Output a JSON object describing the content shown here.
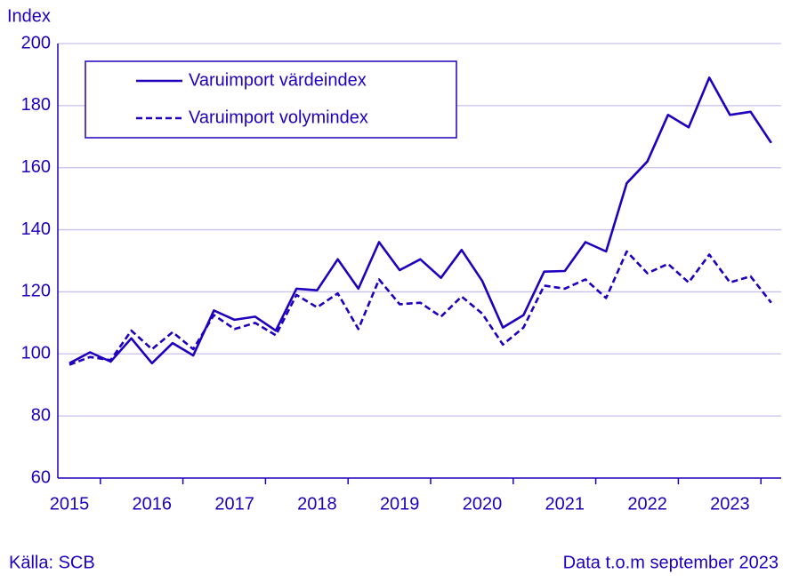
{
  "chart_data": {
    "type": "line",
    "y_label": "Index",
    "categories": [
      "2015",
      null,
      null,
      null,
      "2016",
      null,
      null,
      null,
      "2017",
      null,
      null,
      null,
      "2018",
      null,
      null,
      null,
      "2019",
      null,
      null,
      null,
      "2020",
      null,
      null,
      null,
      "2021",
      null,
      null,
      null,
      "2022",
      null,
      null,
      null,
      "2023",
      null,
      null
    ],
    "series": [
      {
        "name": "Varuimport värdeindex",
        "color": "#1e00be",
        "dash": "solid",
        "values": [
          97,
          100.5,
          97.5,
          105,
          97,
          103.5,
          99.5,
          114,
          111,
          112,
          107.5,
          121,
          120.5,
          130.5,
          121,
          136,
          127,
          130.5,
          124.5,
          133.5,
          123.5,
          108.5,
          112.5,
          126.5,
          126.7,
          136,
          133,
          155,
          162,
          177,
          173,
          189,
          177,
          178,
          168
        ]
      },
      {
        "name": "Varuimport volymindex",
        "color": "#1e00be",
        "dash": "dashed",
        "values": [
          96.5,
          99,
          98,
          107.5,
          101.5,
          107,
          101.5,
          112.5,
          108,
          110,
          106,
          119,
          115,
          119.5,
          108,
          124,
          116,
          116.5,
          112,
          118.5,
          113,
          103,
          108.5,
          122,
          121,
          124,
          118,
          133,
          126,
          129,
          123,
          132,
          123,
          125,
          116.5
        ]
      }
    ],
    "ylim": [
      60,
      200
    ],
    "yticks": [
      60,
      80,
      100,
      120,
      140,
      160,
      180,
      200
    ],
    "grid": true,
    "legend": "top-left",
    "source": "Källa: SCB",
    "note": "Data t.o.m september 2023"
  }
}
